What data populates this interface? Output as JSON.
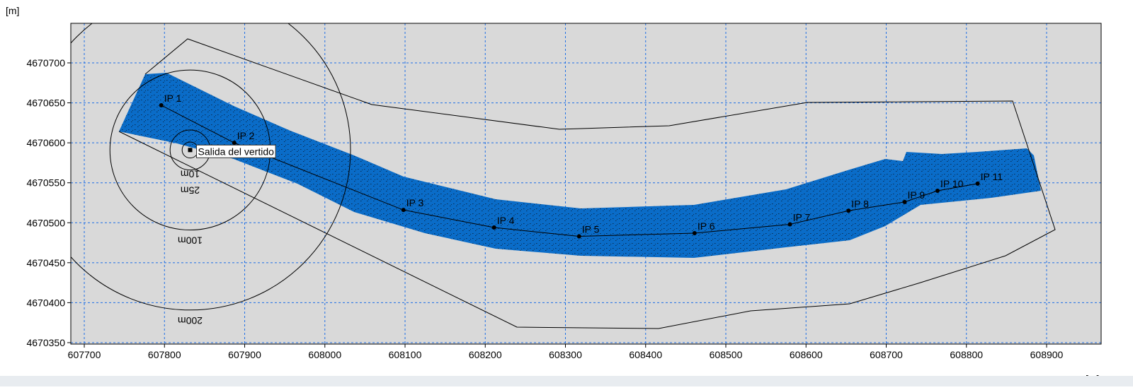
{
  "chart_data": {
    "type": "scatter",
    "y_label": "[m]",
    "x_label": "[m]",
    "xlim": [
      607683.2,
      608968
    ],
    "ylim": [
      4670348.2,
      4670749.5
    ],
    "xticks": [
      607700,
      607800,
      607900,
      608000,
      608100,
      608200,
      608300,
      608400,
      608500,
      608600,
      608700,
      608800,
      608900
    ],
    "yticks": [
      4670350,
      4670400,
      4670450,
      4670500,
      4670550,
      4670600,
      4670650,
      4670700
    ],
    "grid": true,
    "points": {
      "color": "#000000",
      "labels": [
        "IP 1",
        "IP 2",
        "IP 3",
        "IP 4",
        "IP 5",
        "IP 6",
        "IP 7",
        "IP 8",
        "IP 9",
        "IP 10",
        "IP 11"
      ],
      "x": [
        607796,
        607887,
        608098,
        608211,
        608317,
        608461,
        608580,
        608653,
        608723,
        608764,
        608814
      ],
      "y": [
        4670647,
        4670600,
        4670516,
        4670494,
        4670483,
        4670487,
        4670498,
        4670515,
        4670526,
        4670540,
        4670549
      ]
    },
    "outfall": {
      "label": "Salida del vertido",
      "x": 607832,
      "y": 4670591
    },
    "rings": {
      "values": [
        10,
        25,
        100,
        200
      ],
      "value_labels": [
        "10m",
        "25m",
        "100m",
        "200m"
      ]
    }
  }
}
